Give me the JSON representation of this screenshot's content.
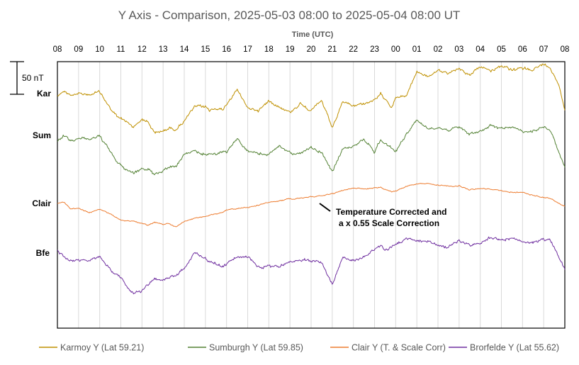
{
  "chart_data": {
    "type": "line",
    "title": "Y Axis - Comparison,  2025-05-03 08:00 to 2025-05-04 08:00 UT",
    "xlabel": "Time (UTC)",
    "ylabel": "",
    "x_ticks": [
      "08",
      "09",
      "10",
      "11",
      "12",
      "13",
      "14",
      "15",
      "16",
      "17",
      "18",
      "19",
      "20",
      "21",
      "22",
      "23",
      "00",
      "01",
      "02",
      "03",
      "04",
      "05",
      "06",
      "07",
      "08"
    ],
    "x_range_hours": [
      0,
      24
    ],
    "grid": true,
    "legend_position": "bottom",
    "scale_bar": {
      "label": "50 nT",
      "value_nT": 50
    },
    "annotation": {
      "line1": "Temperature Corrected and",
      "line2": "a  x 0.55 Scale Correction"
    },
    "series": [
      {
        "name": "Karmoy Y (Lat 59.21)",
        "short_label": "Kar",
        "color": "#BF9000",
        "unit": "nT (relative)",
        "x": [
          0,
          0.3,
          0.6,
          1,
          1.5,
          2,
          2.5,
          2.8,
          3,
          3.3,
          3.6,
          4,
          4.3,
          4.6,
          5,
          5.3,
          5.6,
          6,
          6.5,
          7,
          7.2,
          7.5,
          7.8,
          8,
          8.5,
          9,
          9.5,
          10,
          10.5,
          11,
          11.5,
          12,
          12.5,
          13,
          13.5,
          14,
          14.5,
          15,
          15.3,
          15.5,
          15.8,
          16,
          16.5,
          17,
          17.5,
          18,
          18.5,
          19,
          19.5,
          20,
          20.5,
          21,
          21.5,
          22,
          22.5,
          23,
          23.3,
          23.5,
          23.7,
          24
        ],
        "values": [
          -3,
          4,
          -2,
          0,
          -2,
          3,
          -23,
          -35,
          -38,
          -44,
          -51,
          -39,
          -44,
          -61,
          -57,
          -53,
          -55,
          -42,
          -20,
          -20,
          -26,
          -22,
          -26,
          -16,
          6,
          -22,
          -26,
          -11,
          -20,
          -29,
          -15,
          -26,
          -11,
          -53,
          -13,
          -19,
          -15,
          -11,
          -1,
          -7,
          -21,
          -6,
          -4,
          34,
          26,
          34,
          32,
          39,
          28,
          41,
          35,
          43,
          35,
          39,
          37,
          45,
          39,
          28,
          16,
          -25
        ]
      },
      {
        "name": "Sumburgh Y (Lat 59.85)",
        "short_label": "Sum",
        "color": "#548235",
        "unit": "nT (relative)",
        "x": [
          0,
          0.3,
          0.6,
          1,
          1.5,
          2,
          2.5,
          2.8,
          3,
          3.3,
          3.6,
          4,
          4.3,
          4.6,
          5,
          5.3,
          5.6,
          6,
          6.5,
          7,
          7.2,
          7.5,
          7.8,
          8,
          8.5,
          9,
          9.5,
          10,
          10.5,
          11,
          11.5,
          12,
          12.5,
          13,
          13.5,
          14,
          14.5,
          15,
          15.3,
          15.5,
          15.8,
          16,
          16.5,
          17,
          17.5,
          18,
          18.5,
          19,
          19.5,
          20,
          20.5,
          21,
          21.5,
          22,
          22.5,
          23,
          23.3,
          23.5,
          23.7,
          24
        ],
        "values": [
          -8,
          0,
          -8,
          -4,
          -6,
          -1,
          -25,
          -40,
          -46,
          -53,
          -57,
          -52,
          -52,
          -61,
          -53,
          -48,
          -48,
          -29,
          -25,
          -29,
          -28,
          -29,
          -24,
          -26,
          -5,
          -25,
          -28,
          -29,
          -17,
          -26,
          -29,
          -18,
          -27,
          -56,
          -20,
          -17,
          -6,
          -25,
          -6,
          -12,
          -19,
          -25,
          2,
          23,
          11,
          13,
          8,
          14,
          2,
          7,
          15,
          11,
          14,
          5,
          7,
          14,
          8,
          -6,
          -24,
          -48
        ]
      },
      {
        "name": "Clair Y (T. & Scale Corr)",
        "short_label": "Clair",
        "color": "#ED7D31",
        "unit": "nT (relative)",
        "x": [
          0,
          0.3,
          0.6,
          1,
          1.5,
          2,
          2.5,
          2.8,
          3,
          3.3,
          3.6,
          4,
          4.3,
          4.6,
          5,
          5.3,
          5.6,
          6,
          6.5,
          7,
          7.2,
          7.5,
          7.8,
          8,
          8.5,
          9,
          9.5,
          10,
          10.5,
          11,
          11.5,
          12,
          12.5,
          13,
          13.5,
          14,
          14.5,
          15,
          15.3,
          15.5,
          15.8,
          16,
          16.5,
          17,
          17.5,
          18,
          18.5,
          19,
          19.5,
          20,
          20.5,
          21,
          21.5,
          22,
          22.5,
          23,
          23.3,
          23.5,
          23.7,
          24
        ],
        "values": [
          0,
          2,
          -8,
          -8,
          -14,
          -9,
          -16,
          -22,
          -25,
          -27,
          -27,
          -31,
          -34,
          -29,
          -32,
          -31,
          -36,
          -28,
          -23,
          -20,
          -18,
          -16,
          -14,
          -10,
          -8,
          -6,
          -3,
          2,
          4,
          7,
          8,
          10,
          12,
          15,
          20,
          24,
          22,
          24,
          24,
          21,
          18,
          19,
          26,
          30,
          30,
          28,
          26,
          27,
          21,
          23,
          22,
          19,
          17,
          17,
          12,
          9,
          8,
          5,
          0,
          -4
        ]
      },
      {
        "name": "Brorfelde Y (Lat 55.62)",
        "short_label": "Bfe",
        "color": "#7030A0",
        "unit": "nT (relative)",
        "x": [
          0,
          0.3,
          0.6,
          1,
          1.5,
          2,
          2.5,
          2.8,
          3,
          3.3,
          3.6,
          4,
          4.3,
          4.6,
          5,
          5.3,
          5.6,
          6,
          6.5,
          7,
          7.2,
          7.5,
          7.8,
          8,
          8.5,
          9,
          9.5,
          10,
          10.5,
          11,
          11.5,
          12,
          12.5,
          13,
          13.5,
          14,
          14.5,
          15,
          15.3,
          15.5,
          15.8,
          16,
          16.5,
          17,
          17.5,
          18,
          18.5,
          19,
          19.5,
          20,
          20.5,
          21,
          21.5,
          22,
          22.5,
          23,
          23.3,
          23.5,
          23.7,
          24
        ],
        "values": [
          4,
          -5,
          -12,
          -11,
          -12,
          -6,
          -25,
          -34,
          -37,
          -54,
          -62,
          -58,
          -48,
          -40,
          -41,
          -37,
          -35,
          -23,
          1,
          -8,
          -14,
          -16,
          -21,
          -17,
          -6,
          -6,
          -22,
          -20,
          -21,
          -13,
          -10,
          -12,
          -14,
          -49,
          -6,
          -12,
          -7,
          6,
          11,
          5,
          8,
          13,
          22,
          19,
          18,
          13,
          8,
          19,
          12,
          16,
          24,
          20,
          23,
          16,
          15,
          21,
          18,
          9,
          -6,
          -24
        ]
      }
    ]
  }
}
